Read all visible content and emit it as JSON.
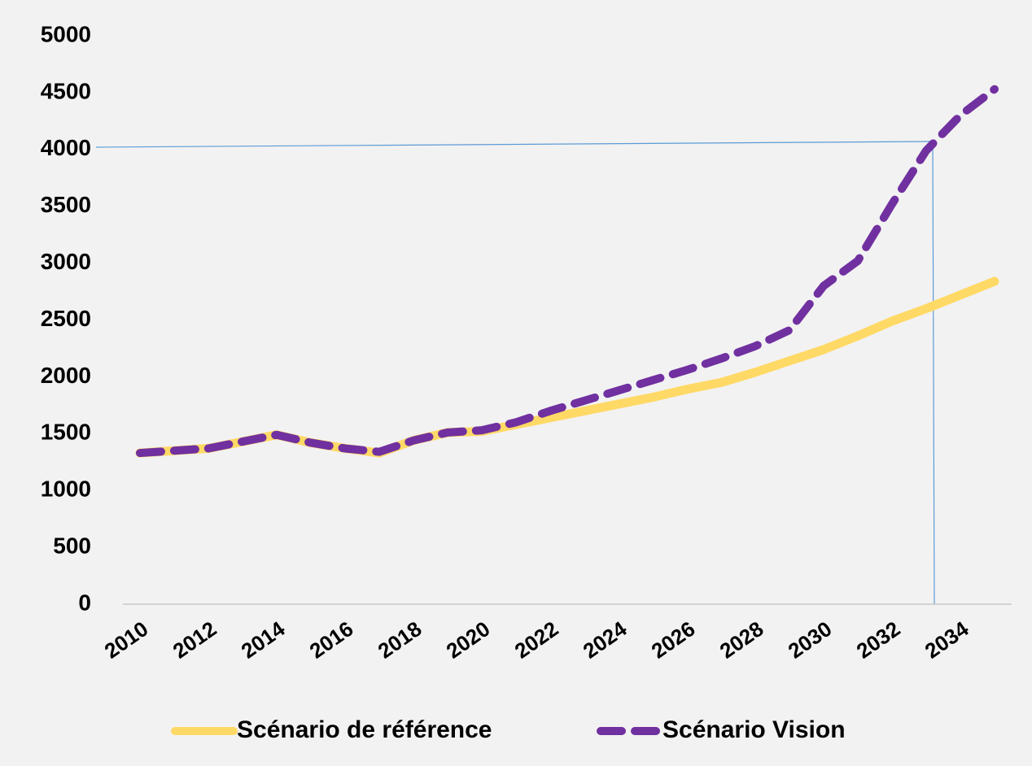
{
  "chart_data": {
    "type": "line",
    "x": [
      2010,
      2011,
      2012,
      2013,
      2014,
      2015,
      2016,
      2017,
      2018,
      2019,
      2020,
      2021,
      2022,
      2023,
      2024,
      2025,
      2026,
      2027,
      2028,
      2029,
      2030,
      2031,
      2032,
      2033,
      2034,
      2035
    ],
    "series": [
      {
        "name": "Scénario de référence",
        "color": "#ffd966",
        "dashed": false,
        "values": [
          1330,
          1350,
          1370,
          1430,
          1490,
          1420,
          1370,
          1330,
          1440,
          1510,
          1520,
          1580,
          1640,
          1700,
          1760,
          1820,
          1890,
          1950,
          2040,
          2140,
          2240,
          2360,
          2490,
          2600,
          2720,
          2840
        ]
      },
      {
        "name": "Scénario Vision",
        "color": "#7030a0",
        "dashed": true,
        "values": [
          1330,
          1350,
          1370,
          1430,
          1490,
          1420,
          1370,
          1340,
          1440,
          1510,
          1530,
          1600,
          1700,
          1790,
          1880,
          1970,
          2060,
          2160,
          2270,
          2410,
          2800,
          3020,
          3520,
          3990,
          4300,
          4530
        ]
      }
    ],
    "xlim": [
      2009.5,
      2035.5
    ],
    "xticks": [
      2010,
      2012,
      2014,
      2016,
      2018,
      2020,
      2022,
      2024,
      2026,
      2028,
      2030,
      2032,
      2034
    ],
    "ylim": [
      0,
      5000
    ],
    "yticks": [
      0,
      500,
      1000,
      1500,
      2000,
      2500,
      3000,
      3500,
      4000,
      4500,
      5000
    ],
    "grid": false,
    "legend": "bottom"
  }
}
